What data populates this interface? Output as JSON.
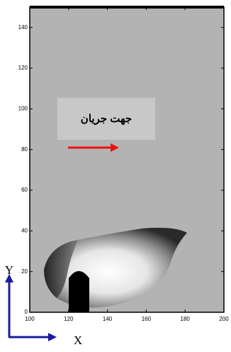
{
  "chart_data": {
    "type": "image",
    "annotation": "جهت جریان",
    "xlabel": "X",
    "ylabel": "Y",
    "xlim": [
      100,
      200
    ],
    "ylim": [
      0,
      150
    ],
    "xticks": [
      100,
      120,
      140,
      160,
      180,
      200
    ],
    "yticks": [
      0,
      20,
      40,
      60,
      80,
      100,
      120,
      140
    ]
  }
}
